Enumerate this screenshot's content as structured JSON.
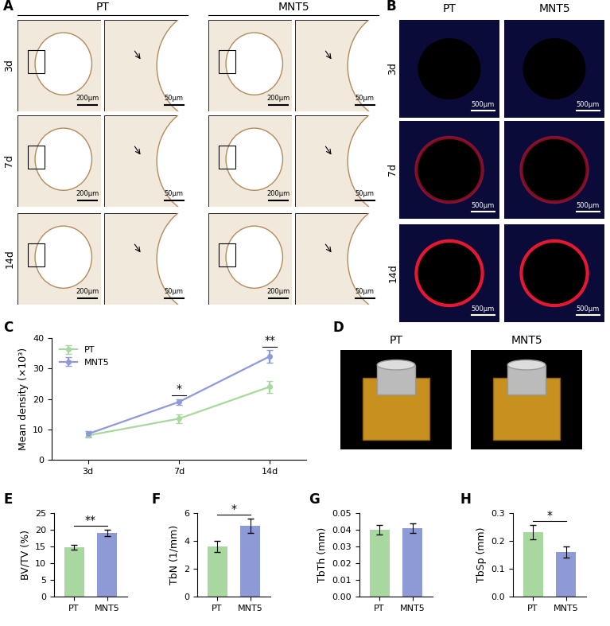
{
  "chart_data": [
    {
      "label": "C",
      "type": "line",
      "y_label": "Mean density (×10³)",
      "categories": [
        "3d",
        "7d",
        "14d"
      ],
      "series": [
        {
          "name": "PT",
          "color": "#a8d89f",
          "marker": "o",
          "values": [
            8,
            13.5,
            24
          ],
          "errors": [
            0.8,
            1.5,
            2
          ]
        },
        {
          "name": "MNT5",
          "color": "#8e9ad6",
          "marker": "o",
          "values": [
            8.5,
            19,
            34
          ],
          "errors": [
            0.8,
            1,
            2
          ]
        }
      ],
      "ylim": [
        0,
        40
      ],
      "yticks": [
        0,
        10,
        20,
        30,
        40
      ],
      "legend": "upper left",
      "annotations": [
        {
          "category": "7d",
          "text": "*"
        },
        {
          "category": "14d",
          "text": "**"
        }
      ]
    },
    {
      "label": "E",
      "type": "bar",
      "y_label": "BV/TV (%)",
      "categories": [
        "PT",
        "MNT5"
      ],
      "values": [
        14.7,
        19
      ],
      "errors": [
        0.7,
        1
      ],
      "colors": [
        "#a8d89f",
        "#8e9ad6"
      ],
      "ylim": [
        0,
        25
      ],
      "yticks": [
        0,
        5,
        10,
        15,
        20,
        25
      ],
      "annotations": [
        {
          "between": [
            "PT",
            "MNT5"
          ],
          "text": "**"
        }
      ]
    },
    {
      "label": "F",
      "type": "bar",
      "y_label": "TbN (1/mm)",
      "categories": [
        "PT",
        "MNT5"
      ],
      "values": [
        3.6,
        5.1
      ],
      "errors": [
        0.4,
        0.5
      ],
      "colors": [
        "#a8d89f",
        "#8e9ad6"
      ],
      "ylim": [
        0,
        6
      ],
      "yticks": [
        0,
        2,
        4,
        6
      ],
      "annotations": [
        {
          "between": [
            "PT",
            "MNT5"
          ],
          "text": "*"
        }
      ]
    },
    {
      "label": "G",
      "type": "bar",
      "y_label": "TbTh (mm)",
      "categories": [
        "PT",
        "MNT5"
      ],
      "values": [
        0.04,
        0.041
      ],
      "errors": [
        0.003,
        0.003
      ],
      "colors": [
        "#a8d89f",
        "#8e9ad6"
      ],
      "ylim": [
        0,
        0.05
      ],
      "yticks": [
        {
          "value": 0,
          "label": "0.00"
        },
        {
          "value": 0.01,
          "label": "0.01"
        },
        {
          "value": 0.02,
          "label": "0.02"
        },
        {
          "value": 0.03,
          "label": "0.03"
        },
        {
          "value": 0.04,
          "label": "0.04"
        },
        {
          "value": 0.05,
          "label": "0.05"
        }
      ],
      "annotations": []
    },
    {
      "label": "H",
      "type": "bar",
      "y_label": "TbSp (mm)",
      "categories": [
        "PT",
        "MNT5"
      ],
      "values": [
        0.232,
        0.16
      ],
      "errors": [
        0.025,
        0.02
      ],
      "colors": [
        "#a8d89f",
        "#8e9ad6"
      ],
      "ylim": [
        0,
        0.3
      ],
      "yticks": [
        {
          "value": 0,
          "label": "0.0"
        },
        {
          "value": 0.1,
          "label": "0.1"
        },
        {
          "value": 0.2,
          "label": "0.2"
        },
        {
          "value": 0.3,
          "label": "0.3"
        }
      ],
      "annotations": [
        {
          "between": [
            "PT",
            "MNT5"
          ],
          "text": "*"
        }
      ]
    }
  ],
  "image_panels": [
    {
      "label": "A",
      "columns": [
        "PT",
        "MNT5"
      ],
      "rows": [
        "3d",
        "7d",
        "14d"
      ],
      "scale_bars": [
        "200μm",
        "50μm"
      ]
    },
    {
      "label": "B",
      "columns": [
        "PT",
        "MNT5"
      ],
      "rows": [
        "3d",
        "7d",
        "14d"
      ],
      "scale_bars": [
        "500μm"
      ]
    },
    {
      "label": "D",
      "columns": [
        "PT",
        "MNT5"
      ]
    }
  ]
}
